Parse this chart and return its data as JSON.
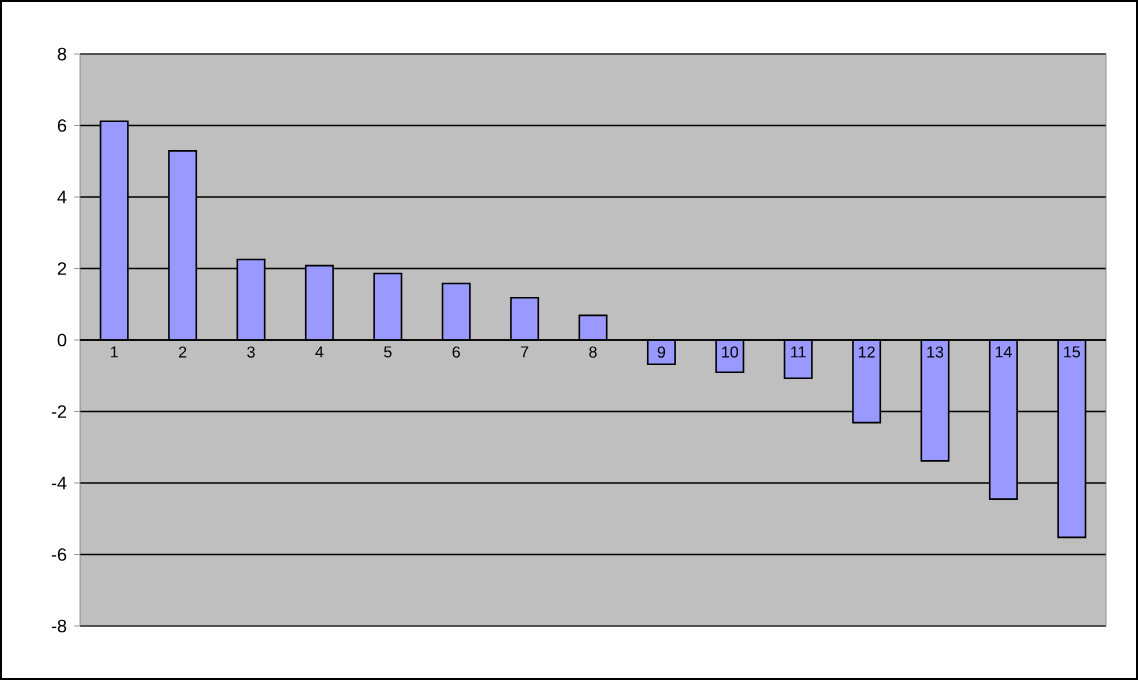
{
  "chart_data": {
    "type": "bar",
    "categories": [
      "1",
      "2",
      "3",
      "4",
      "5",
      "6",
      "7",
      "8",
      "9",
      "10",
      "11",
      "12",
      "13",
      "14",
      "15"
    ],
    "values": [
      6.12,
      5.29,
      2.25,
      2.08,
      1.86,
      1.58,
      1.18,
      0.69,
      -0.68,
      -0.9,
      -1.07,
      -2.31,
      -3.38,
      -4.45,
      -5.52
    ],
    "color": "#9999ff",
    "ylim": [
      -8,
      8
    ],
    "yticks": [
      -8,
      -6,
      -4,
      -2,
      0,
      2,
      4,
      6,
      8
    ],
    "grid": "y"
  }
}
